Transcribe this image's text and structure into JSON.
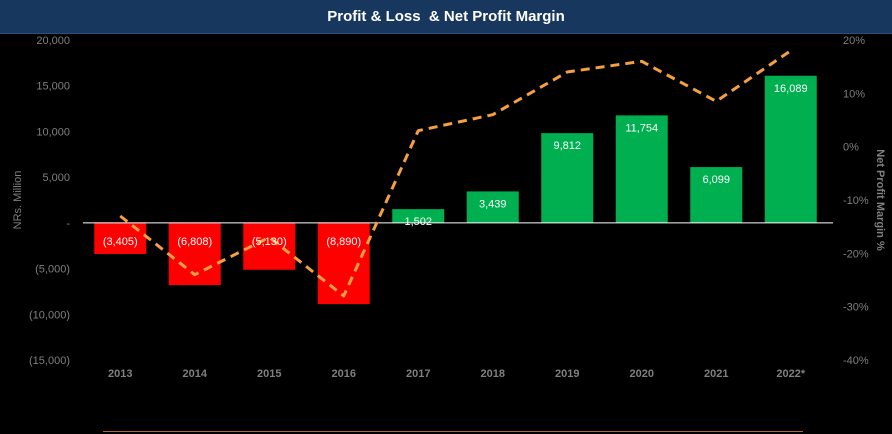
{
  "title": "Profit & Loss  & Net Profit Margin",
  "chart_data": {
    "type": "bar",
    "title": "Profit & Loss  & Net Profit Margin",
    "categories": [
      "2013",
      "2014",
      "2015",
      "2016",
      "2017",
      "2018",
      "2019",
      "2020",
      "2021",
      "2022*"
    ],
    "series": [
      {
        "type": "bar",
        "axis": "left",
        "values": [
          -3405,
          -6808,
          -5130,
          -8890,
          1502,
          3439,
          9812,
          11754,
          6099,
          16089
        ],
        "labels": [
          "(3,405)",
          "(6,808)",
          "(5,130)",
          "(8,890)",
          "1,502",
          "3,439",
          "9,812",
          "11,754",
          "6,099",
          "16,089"
        ],
        "positive_color": "#00b050",
        "negative_color": "#ff0000"
      },
      {
        "type": "line",
        "axis": "right",
        "style": "dashed",
        "color": "#f4a040",
        "values": [
          -13,
          -24,
          -17,
          -28,
          3,
          6,
          14,
          16,
          8.5,
          18
        ]
      }
    ],
    "ylabel": "NRs. Million",
    "y2label": "Net Profit  Margin %",
    "ylim": [
      -15000,
      20000
    ],
    "y2lim": [
      -40,
      20
    ],
    "yticks": [
      20000,
      15000,
      10000,
      5000,
      0,
      -5000,
      -10000,
      -15000
    ],
    "ytick_labels": [
      "20,000",
      "15,000",
      "10,000",
      "5,000",
      "-",
      "(5,000)",
      "(10,000)",
      "(15,000)"
    ],
    "y2ticks": [
      20,
      10,
      0,
      -10,
      -20,
      -30,
      -40
    ],
    "y2tick_labels": [
      "20%",
      "10%",
      "0%",
      "-10%",
      "-20%",
      "-30%",
      "-40%"
    ],
    "grid": false,
    "legend": "none"
  }
}
